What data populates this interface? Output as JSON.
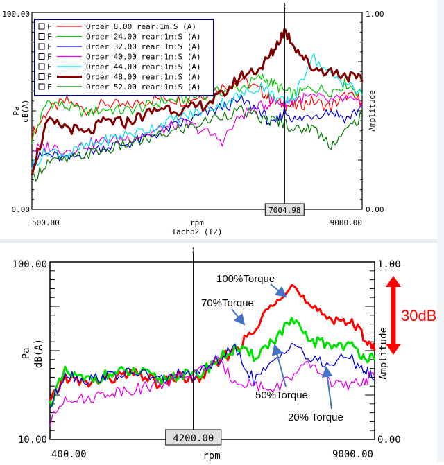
{
  "charts": [
    {
      "title": "",
      "xlabel": "rpm",
      "xsub": "Tacho2 (T2)",
      "ylabel": "Pa",
      "ylabel2": "dB(A)",
      "ylabel_right": "Amplitude",
      "y_left_ticks": [
        "100.00",
        "0.00"
      ],
      "y_right_ticks": [
        "1.00",
        "0.00"
      ],
      "x_ticks": [
        "500.00",
        "9000.00"
      ],
      "cursor_readout": "7004.98",
      "cursor_marker": "⌇"
    },
    {
      "title": "",
      "xlabel": "rpm",
      "ylabel": "Pa",
      "ylabel2": "dB(A)",
      "ylabel_right": "Amplitude",
      "y_left_ticks": [
        "100.00",
        "10.00"
      ],
      "y_right_ticks": [
        "1.00",
        "0.00"
      ],
      "x_ticks": [
        "400.00",
        "9000.00"
      ],
      "cursor_readout": "4200.00",
      "cursor_marker": "⌇",
      "scale_note": "30dB",
      "annotations": [
        "100%Torque",
        "70%Torque",
        "50%Torque",
        "20% Torque"
      ]
    }
  ],
  "legend": {
    "checkbox_label": "F",
    "entries": [
      {
        "label": "Order 8.00 rear:1m:S (A)",
        "color": "#ff0000"
      },
      {
        "label": "Order 24.00 rear:1m:S (A)",
        "color": "#00c800"
      },
      {
        "label": "Order 32.00 rear:1m:S (A)",
        "color": "#0000dc"
      },
      {
        "label": "Order 40.00 rear:1m:S (A)",
        "color": "#e600e6"
      },
      {
        "label": "Order 44.00 rear:1m:S (A)",
        "color": "#00e0f0"
      },
      {
        "label": "Order 48.00 rear:1m:S (A)",
        "color": "#800000"
      },
      {
        "label": "Order 52.00 rear:1m:S (A)",
        "color": "#007800"
      }
    ]
  },
  "chart_data": [
    {
      "type": "line",
      "xlim": [
        500,
        9000
      ],
      "ylim": [
        0,
        100
      ],
      "cursor_x": 7004.98,
      "series": [
        {
          "name": "Order 8.00 rear:1m:S (A)",
          "color": "#ff0000",
          "width": 1.2,
          "x": [
            500,
            900,
            1400,
            1900,
            2400,
            2900,
            3400,
            3900,
            4400,
            4900,
            5400,
            5900,
            6400,
            6700,
            7000,
            7300,
            7700,
            8200,
            8600,
            9000
          ],
          "y": [
            38,
            50,
            55,
            50,
            54,
            52,
            55,
            57,
            55,
            58,
            62,
            66,
            60,
            55,
            53,
            52,
            55,
            52,
            58,
            55
          ]
        },
        {
          "name": "Order 24.00 rear:1m:S (A)",
          "color": "#00c800",
          "width": 1.2,
          "x": [
            500,
            900,
            1400,
            1900,
            2400,
            2900,
            3400,
            3900,
            4400,
            4900,
            5400,
            5900,
            6400,
            6700,
            7000,
            7300,
            7700,
            8200,
            8600,
            9000
          ],
          "y": [
            35,
            55,
            52,
            49,
            51,
            50,
            52,
            55,
            56,
            58,
            60,
            62,
            67,
            64,
            60,
            58,
            62,
            60,
            64,
            58
          ]
        },
        {
          "name": "Order 32.00 rear:1m:S (A)",
          "color": "#0000dc",
          "width": 1.2,
          "x": [
            500,
            900,
            1400,
            1900,
            2400,
            2900,
            3400,
            3900,
            4400,
            4900,
            5400,
            5900,
            6400,
            6700,
            7000,
            7300,
            7700,
            8200,
            8600,
            9000
          ],
          "y": [
            25,
            28,
            25,
            29,
            32,
            33,
            36,
            40,
            44,
            48,
            52,
            55,
            50,
            42,
            50,
            45,
            48,
            50,
            46,
            52
          ]
        },
        {
          "name": "Order 40.00 rear:1m:S (A)",
          "color": "#e600e6",
          "width": 1.2,
          "x": [
            500,
            900,
            1400,
            1900,
            2400,
            2900,
            3400,
            3900,
            4400,
            4900,
            5400,
            5900,
            6400,
            6700,
            7000,
            7300,
            7700,
            8200,
            8600,
            9000
          ],
          "y": [
            30,
            32,
            30,
            33,
            35,
            36,
            38,
            41,
            44,
            40,
            35,
            48,
            52,
            55,
            54,
            56,
            57,
            55,
            56,
            52
          ]
        },
        {
          "name": "Order 44.00 rear:1m:S (A)",
          "color": "#00e0f0",
          "width": 1.2,
          "x": [
            500,
            900,
            1400,
            1900,
            2400,
            2900,
            3400,
            3900,
            4400,
            4900,
            5400,
            5900,
            6400,
            6700,
            7000,
            7300,
            7700,
            8200,
            8600,
            9000
          ],
          "y": [
            22,
            30,
            28,
            32,
            35,
            38,
            40,
            44,
            47,
            50,
            54,
            58,
            63,
            58,
            54,
            58,
            78,
            68,
            64,
            58
          ]
        },
        {
          "name": "Order 48.00 rear:1m:S (A)",
          "color": "#800000",
          "width": 3,
          "x": [
            500,
            900,
            1400,
            1900,
            2400,
            2900,
            3400,
            3900,
            4400,
            4900,
            5400,
            5900,
            6400,
            6700,
            7000,
            7300,
            7700,
            8200,
            8600,
            9000
          ],
          "y": [
            20,
            44,
            42,
            38,
            45,
            44,
            48,
            52,
            50,
            53,
            58,
            68,
            72,
            80,
            91,
            82,
            72,
            70,
            68,
            65
          ]
        },
        {
          "name": "Order 52.00 rear:1m:S (A)",
          "color": "#007800",
          "width": 1.2,
          "x": [
            500,
            900,
            1400,
            1900,
            2400,
            2900,
            3400,
            3900,
            4400,
            4900,
            5400,
            5900,
            6400,
            6700,
            7000,
            7300,
            7700,
            8200,
            8600,
            9000
          ],
          "y": [
            15,
            24,
            25,
            28,
            30,
            33,
            35,
            38,
            41,
            44,
            48,
            50,
            46,
            45,
            44,
            40,
            42,
            33,
            40,
            48
          ]
        }
      ]
    },
    {
      "type": "line",
      "xlim": [
        400,
        9000
      ],
      "ylim": [
        10,
        100
      ],
      "cursor_x": 4200,
      "series": [
        {
          "name": "100%Torque",
          "color": "#ff0000",
          "width": 3,
          "x": [
            400,
            800,
            1300,
            1800,
            2300,
            2800,
            3300,
            3800,
            4300,
            4800,
            5300,
            5800,
            6300,
            6800,
            7300,
            7800,
            8300,
            8700,
            9000
          ],
          "y": [
            28,
            42,
            38,
            40,
            42,
            43,
            38,
            42,
            40,
            48,
            56,
            64,
            80,
            89,
            76,
            72,
            70,
            63,
            55
          ]
        },
        {
          "name": "70%Torque",
          "color": "#00e000",
          "width": 3,
          "x": [
            400,
            800,
            1300,
            1800,
            2300,
            2800,
            3300,
            3800,
            4300,
            4800,
            5300,
            5800,
            6300,
            6800,
            7300,
            7800,
            8300,
            8700,
            9000
          ],
          "y": [
            28,
            44,
            40,
            42,
            44,
            44,
            40,
            43,
            42,
            50,
            56,
            52,
            60,
            70,
            60,
            58,
            58,
            53,
            50
          ]
        },
        {
          "name": "50%Torque",
          "color": "#0000dc",
          "width": 1.3,
          "x": [
            400,
            800,
            1300,
            1800,
            2300,
            2800,
            3300,
            3800,
            4300,
            4800,
            5300,
            5800,
            6300,
            6800,
            7300,
            7800,
            8300,
            8700,
            9000
          ],
          "y": [
            26,
            44,
            40,
            42,
            43,
            44,
            40,
            43,
            42,
            50,
            56,
            40,
            48,
            60,
            50,
            48,
            52,
            46,
            40
          ]
        },
        {
          "name": "20% Torque",
          "color": "#e600e6",
          "width": 1.3,
          "x": [
            400,
            800,
            1300,
            1800,
            2300,
            2800,
            3300,
            3800,
            4300,
            4800,
            5300,
            5800,
            6300,
            6800,
            7300,
            7800,
            8300,
            8700,
            9000
          ],
          "y": [
            18,
            32,
            30,
            33,
            35,
            36,
            38,
            41,
            44,
            50,
            40,
            38,
            35,
            42,
            48,
            40,
            36,
            40,
            42
          ]
        }
      ]
    }
  ]
}
